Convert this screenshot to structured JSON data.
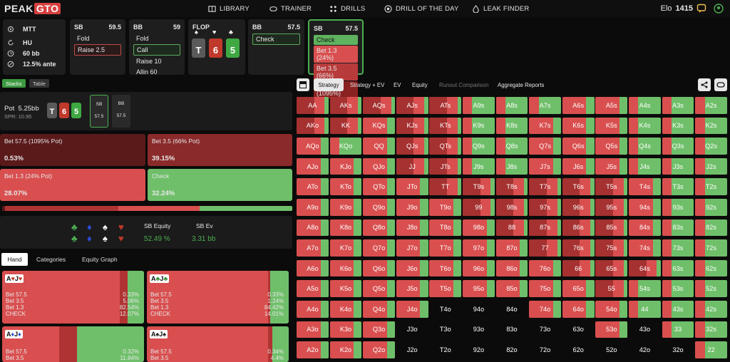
{
  "topbar": {
    "logo_peak": "PEAK",
    "logo_gto": "GTO",
    "nav": [
      "LIBRARY",
      "TRAINER",
      "DRILLS",
      "DRILL OF THE DAY",
      "LEAK FINDER"
    ],
    "elo_label": "Elo",
    "elo_value": "1415"
  },
  "info": {
    "format": "MTT",
    "table": "HU",
    "stack": "60 bb",
    "ante": "12.5% ante"
  },
  "cards": [
    {
      "pos": "SB",
      "stack": "59.5",
      "actions": [
        "Fold",
        "Raise 2.5"
      ],
      "selected": 1
    },
    {
      "pos": "BB",
      "stack": "59",
      "actions": [
        "Fold",
        "Call",
        "Raise 10",
        "Allin 60"
      ],
      "selected": 1
    },
    {
      "pos": "BB",
      "stack": "57.5",
      "actions": [
        "Check"
      ],
      "selected": 0
    },
    {
      "pos": "SB",
      "stack": "57.5",
      "actions": [
        "Check",
        "Bet 1.3 (24%)",
        "Bet 3.5 (66%)",
        "Bet 57.5 (1095%)"
      ]
    }
  ],
  "flop": {
    "label": "FLOP",
    "cards": [
      "T",
      "6",
      "5"
    ]
  },
  "left_tabs": [
    "Stacks",
    "Table"
  ],
  "pot": {
    "label": "Pot",
    "value": "5.25bb",
    "spr": "SPR: 10.95",
    "board": [
      "T",
      "6",
      "5"
    ],
    "seats": [
      {
        "pos": "SB",
        "stack": "57.5"
      },
      {
        "pos": "BB",
        "stack": "57.5"
      }
    ]
  },
  "strategy_blocks": [
    {
      "label": "Bet 57.5 (1095% Pot)",
      "pct": "0.53%"
    },
    {
      "label": "Bet 3.5 (66% Pot)",
      "pct": "39.15%"
    },
    {
      "label": "Bet 1.3 (24% Pot)",
      "pct": "28.07%"
    },
    {
      "label": "Check",
      "pct": "32.24%"
    }
  ],
  "equity": {
    "equity_label": "SB Equity",
    "equity_value": "52.49 %",
    "ev_label": "SB Ev",
    "ev_value": "3.31 bb"
  },
  "hand_tabs": [
    "Hand",
    "Categories",
    "Equity Graph"
  ],
  "hand_cards": [
    {
      "combo": "AhJh",
      "rank1": "A",
      "suit1": "♥",
      "rank2": "J",
      "suit2": "♥",
      "colors": [
        "#c0392b",
        "#c0392b"
      ],
      "rows": [
        "Bet 57.5",
        "Bet 3.5",
        "Bet 1.3",
        "CHECK"
      ],
      "vals": [
        "0.33%",
        "5.06%",
        "82.54%",
        "12.07%"
      ]
    },
    {
      "combo": "AcJc",
      "rank1": "A",
      "suit1": "♣",
      "rank2": "J",
      "suit2": "♣",
      "colors": [
        "#2e8b2e",
        "#2e8b2e"
      ],
      "rows": [
        "Bet 57.5",
        "Bet 3.5",
        "Bet 1.3",
        "CHECK"
      ],
      "vals": [
        "0.33%",
        "1.24%",
        "84.42%",
        "14.01%"
      ]
    },
    {
      "combo": "AdJd",
      "rank1": "A",
      "suit1": "♦",
      "rank2": "J",
      "suit2": "♦",
      "colors": [
        "#2a4fd6",
        "#2a4fd6"
      ],
      "rows": [
        "Bet 57.5",
        "Bet 3.5"
      ],
      "vals": [
        "0.32%",
        "11.84%"
      ]
    },
    {
      "combo": "AsJs",
      "rank1": "A",
      "suit1": "♠",
      "rank2": "J",
      "suit2": "♠",
      "colors": [
        "#111",
        "#111"
      ],
      "rows": [
        "Bet 57.5",
        "Bet 3.5"
      ],
      "vals": [
        "0.34%",
        "4.4%"
      ]
    }
  ],
  "grid_tabs": [
    "Strategy",
    "Strategy + EV",
    "EV",
    "Equity",
    "Runout Comparison",
    "Aggregate Reports"
  ],
  "grid": {
    "hands": [
      [
        "AA",
        "AKs",
        "AQs",
        "AJs",
        "ATs",
        "A9s",
        "A8s",
        "A7s",
        "A6s",
        "A5s",
        "A4s",
        "A3s",
        "A2s"
      ],
      [
        "AKo",
        "KK",
        "KQs",
        "KJs",
        "KTs",
        "K9s",
        "K8s",
        "K7s",
        "K6s",
        "K5s",
        "K4s",
        "K3s",
        "K2s"
      ],
      [
        "AQo",
        "KQo",
        "QQ",
        "QJs",
        "QTs",
        "Q9s",
        "Q8s",
        "Q7s",
        "Q6s",
        "Q5s",
        "Q4s",
        "Q3s",
        "Q2s"
      ],
      [
        "AJo",
        "KJo",
        "QJo",
        "JJ",
        "JTs",
        "J9s",
        "J8s",
        "J7s",
        "J6s",
        "J5s",
        "J4s",
        "J3s",
        "J2s"
      ],
      [
        "ATo",
        "KTo",
        "QTo",
        "JTo",
        "TT",
        "T9s",
        "T8s",
        "T7s",
        "T6s",
        "T5s",
        "T4s",
        "T3s",
        "T2s"
      ],
      [
        "A9o",
        "K9o",
        "Q9o",
        "J9o",
        "T9o",
        "99",
        "98s",
        "97s",
        "96s",
        "95s",
        "94s",
        "93s",
        "92s"
      ],
      [
        "A8o",
        "K8o",
        "Q8o",
        "J8o",
        "T8o",
        "98o",
        "88",
        "87s",
        "86s",
        "85s",
        "84s",
        "83s",
        "82s"
      ],
      [
        "A7o",
        "K7o",
        "Q7o",
        "J7o",
        "T7o",
        "97o",
        "87o",
        "77",
        "76s",
        "75s",
        "74s",
        "73s",
        "72s"
      ],
      [
        "A6o",
        "K6o",
        "Q6o",
        "J6o",
        "T6o",
        "96o",
        "86o",
        "76o",
        "66",
        "65s",
        "64s",
        "63s",
        "62s"
      ],
      [
        "A5o",
        "K5o",
        "Q5o",
        "J5o",
        "T5o",
        "95o",
        "85o",
        "75o",
        "65o",
        "55",
        "54s",
        "53s",
        "52s"
      ],
      [
        "A4o",
        "K4o",
        "Q4o",
        "J4o",
        "T4o",
        "94o",
        "84o",
        "74o",
        "64o",
        "54o",
        "44",
        "43s",
        "42s"
      ],
      [
        "A3o",
        "K3o",
        "Q3o",
        "J3o",
        "T3o",
        "93o",
        "83o",
        "73o",
        "63o",
        "53o",
        "43o",
        "33",
        "32s"
      ],
      [
        "A2o",
        "K2o",
        "Q2o",
        "J2o",
        "T2o",
        "92o",
        "82o",
        "72o",
        "62o",
        "52o",
        "42o",
        "32o",
        "22"
      ]
    ]
  },
  "colors": {
    "bet_big": "#8a2222",
    "bet_mid": "#b83a3a",
    "bet_small": "#d94f4f",
    "check": "#5fb35f"
  }
}
